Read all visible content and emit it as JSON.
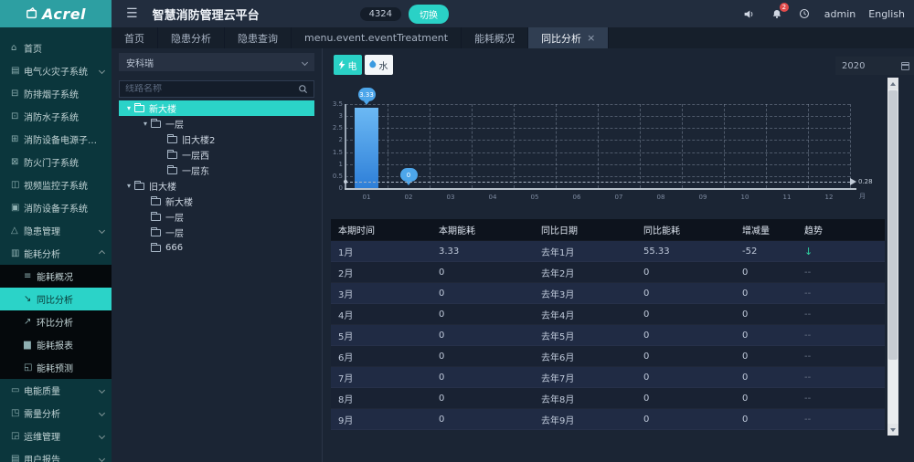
{
  "colors": {
    "accent": "#2ad1c6",
    "logo_bg": "#2d9fa2",
    "bar_blue": "#4da6ea",
    "trend_down_green": "#2fd0a0",
    "tree_selected": "#2bd3c8"
  },
  "brand": {
    "logo_text": "Acrel"
  },
  "header": {
    "title": "智慧消防管理云平台",
    "count_badge": "4324",
    "switch_label": "切换",
    "notification_count": "2",
    "user": "admin",
    "language": "English"
  },
  "tabs": [
    {
      "label": "首页",
      "active": false
    },
    {
      "label": "隐患分析",
      "active": false
    },
    {
      "label": "隐患查询",
      "active": false
    },
    {
      "label": "menu.event.eventTreatment",
      "active": false
    },
    {
      "label": "能耗概况",
      "active": false
    },
    {
      "label": "同比分析",
      "active": true,
      "closable": true
    }
  ],
  "sidebar": {
    "items": [
      {
        "label": "首页",
        "icon": "home-icon"
      },
      {
        "label": "电气火灾子系统",
        "icon": "electric-fire-icon",
        "chevron": "down"
      },
      {
        "label": "防排烟子系统",
        "icon": "smoke-icon"
      },
      {
        "label": "消防水子系统",
        "icon": "fire-water-icon"
      },
      {
        "label": "消防设备电源子系统",
        "icon": "power-supply-icon"
      },
      {
        "label": "防火门子系统",
        "icon": "fire-door-icon"
      },
      {
        "label": "视频监控子系统",
        "icon": "video-icon"
      },
      {
        "label": "消防设备子系统",
        "icon": "device-icon"
      },
      {
        "label": "隐患管理",
        "icon": "warning-icon",
        "chevron": "down"
      },
      {
        "label": "能耗分析",
        "icon": "energy-icon",
        "chevron": "up",
        "expanded": true,
        "children": [
          {
            "label": "能耗概况",
            "icon": "overview-icon"
          },
          {
            "label": "同比分析",
            "icon": "yoy-icon",
            "active": true
          },
          {
            "label": "环比分析",
            "icon": "mom-icon"
          },
          {
            "label": "能耗报表",
            "icon": "report-icon"
          },
          {
            "label": "能耗预测",
            "icon": "forecast-icon"
          }
        ]
      },
      {
        "label": "电能质量",
        "icon": "quality-icon",
        "chevron": "down"
      },
      {
        "label": "需量分析",
        "icon": "demand-icon",
        "chevron": "down"
      },
      {
        "label": "运维管理",
        "icon": "ops-icon",
        "chevron": "down"
      },
      {
        "label": "用户报告",
        "icon": "user-report-icon",
        "chevron": "down"
      }
    ]
  },
  "tree_panel": {
    "project_select_value": "安科瑞",
    "search_placeholder": "线路名称",
    "nodes": [
      {
        "label": "新大楼",
        "level": 0,
        "caret": true,
        "selected": true
      },
      {
        "label": "一层",
        "level": 1,
        "caret": true
      },
      {
        "label": "旧大楼2",
        "level": 2
      },
      {
        "label": "一层西",
        "level": 2
      },
      {
        "label": "一层东",
        "level": 2
      },
      {
        "label": "旧大楼",
        "level": 0,
        "caret": true
      },
      {
        "label": "新大楼",
        "level": 1
      },
      {
        "label": "一层",
        "level": 1
      },
      {
        "label": "一层",
        "level": 1
      },
      {
        "label": "666",
        "level": 1
      }
    ]
  },
  "toolbar": {
    "electric_label": "电",
    "water_label": "水",
    "year_value": "2020"
  },
  "chart_data": {
    "type": "bar",
    "title": "",
    "categories": [
      "01",
      "02",
      "03",
      "04",
      "05",
      "06",
      "07",
      "08",
      "09",
      "10",
      "11",
      "12"
    ],
    "values": [
      3.33,
      0,
      0,
      0,
      0,
      0,
      0,
      0,
      0,
      0,
      0,
      0
    ],
    "labeled_points": [
      {
        "index": 0,
        "label": "3.33"
      },
      {
        "index": 1,
        "label": "0"
      }
    ],
    "yticks": [
      0,
      0.5,
      1,
      1.5,
      2,
      2.5,
      3,
      3.5
    ],
    "ylim": [
      0,
      3.5
    ],
    "xlabel": "月",
    "ylabel": "",
    "grid": true,
    "average_line": {
      "value": 0.28,
      "label": "0.28"
    }
  },
  "table": {
    "columns": [
      "本期时间",
      "本期能耗",
      "同比日期",
      "同比能耗",
      "增减量",
      "趋势"
    ],
    "rows": [
      [
        "1月",
        "3.33",
        "去年1月",
        "55.33",
        "-52",
        "down"
      ],
      [
        "2月",
        "0",
        "去年2月",
        "0",
        "0",
        "--"
      ],
      [
        "3月",
        "0",
        "去年3月",
        "0",
        "0",
        "--"
      ],
      [
        "4月",
        "0",
        "去年4月",
        "0",
        "0",
        "--"
      ],
      [
        "5月",
        "0",
        "去年5月",
        "0",
        "0",
        "--"
      ],
      [
        "6月",
        "0",
        "去年6月",
        "0",
        "0",
        "--"
      ],
      [
        "7月",
        "0",
        "去年7月",
        "0",
        "0",
        "--"
      ],
      [
        "8月",
        "0",
        "去年8月",
        "0",
        "0",
        "--"
      ],
      [
        "9月",
        "0",
        "去年9月",
        "0",
        "0",
        "--"
      ]
    ]
  }
}
